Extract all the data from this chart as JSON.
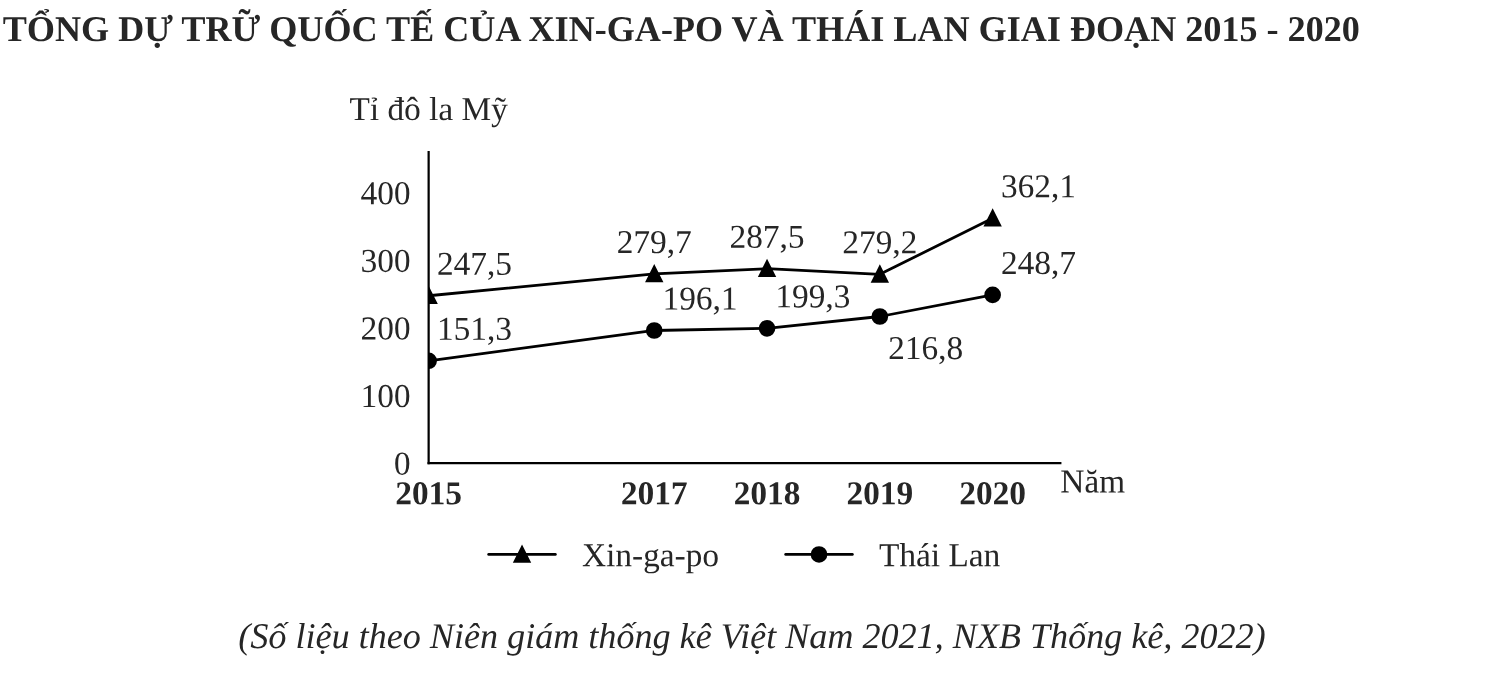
{
  "chart_data": {
    "type": "line",
    "title": "TỔNG DỰ TRỮ QUỐC TẾ CỦA XIN-GA-PO VÀ THÁI LAN GIAI ĐOẠN 2015 - 2020",
    "ylabel": "Tỉ đô la Mỹ",
    "xlabel": "Năm",
    "x": [
      2015,
      2017,
      2018,
      2019,
      2020
    ],
    "xlim": [
      2015,
      2020.6
    ],
    "xticks": [
      2015,
      2017,
      2018,
      2019,
      2020
    ],
    "ylim": [
      0,
      460
    ],
    "yticks": [
      0,
      100,
      200,
      300,
      400
    ],
    "series": [
      {
        "name": "Xin-ga-po",
        "color": "#000000",
        "marker": "triangle",
        "values": [
          247.5,
          279.7,
          287.5,
          279.2,
          362.1
        ],
        "value_labels": [
          "247,5",
          "279,7",
          "287,5",
          "279,2",
          "362,1"
        ]
      },
      {
        "name": "Thái Lan",
        "color": "#000000",
        "marker": "circle",
        "values": [
          151.3,
          196.1,
          199.3,
          216.8,
          248.7
        ],
        "value_labels": [
          "151,3",
          "196,1",
          "199,3",
          "216,8",
          "248,7"
        ]
      }
    ],
    "grid": false,
    "legend": "bottom",
    "line_style": "solid",
    "annotations": [
      "(Số liệu theo Niên giám thống kê Việt Nam 2021, NXB Thống kê, 2022)"
    ]
  }
}
